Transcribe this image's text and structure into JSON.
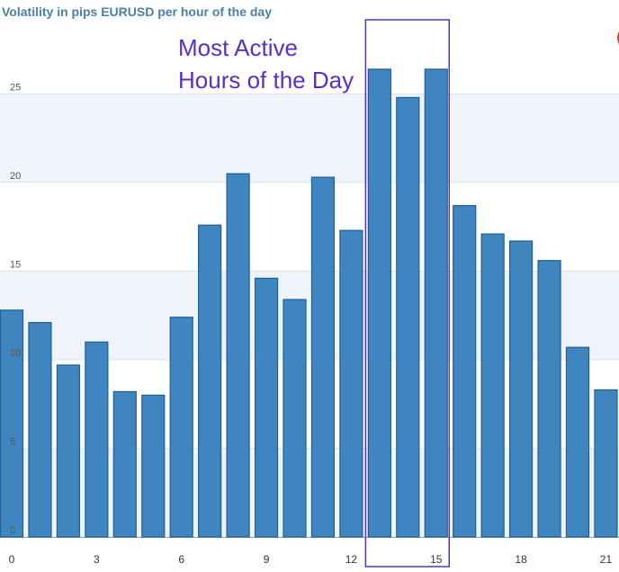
{
  "chart_data": {
    "type": "bar",
    "title": "Volatility in pips EURUSD per hour of the day",
    "xlabel": "",
    "ylabel": "",
    "x": [
      0,
      1,
      2,
      3,
      4,
      5,
      6,
      7,
      8,
      9,
      10,
      11,
      12,
      13,
      14,
      15,
      16,
      17,
      18,
      19,
      20,
      21
    ],
    "values": [
      12.8,
      12.1,
      9.7,
      11.0,
      8.2,
      8.0,
      12.4,
      17.6,
      20.5,
      14.6,
      13.4,
      20.3,
      17.3,
      26.4,
      24.8,
      26.4,
      18.7,
      17.1,
      16.7,
      15.6,
      10.7,
      8.3
    ],
    "ylim": [
      0,
      30
    ],
    "yticks": [
      "0",
      "5",
      "10",
      "15",
      "20",
      "25"
    ],
    "xticks": [
      "0",
      "3",
      "6",
      "9",
      "12",
      "15",
      "18",
      "21"
    ],
    "grid": true,
    "bar_color": "#3f86c0",
    "bar_edge_color": "#1f5f94",
    "highlight_range": [
      13,
      15
    ],
    "highlight_color": "#5b2ec9",
    "annotation": [
      "Most Active",
      "Hours of the Day"
    ]
  }
}
